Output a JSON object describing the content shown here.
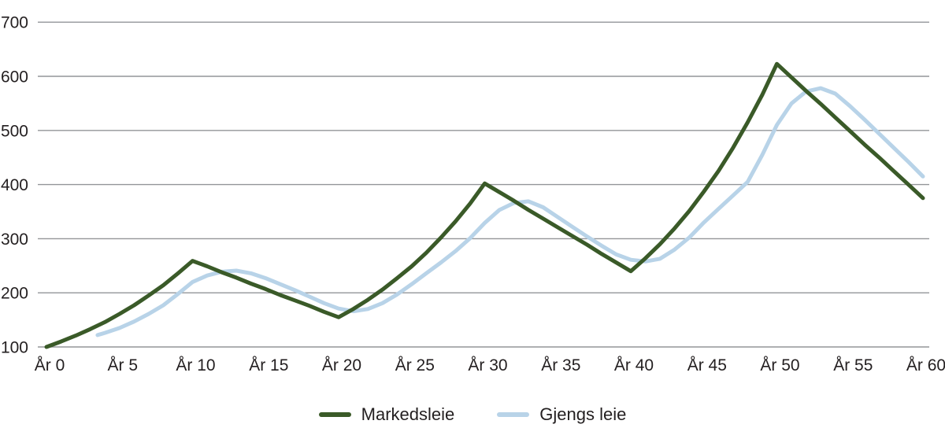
{
  "colors": {
    "background": "#ffffff",
    "grid": "#939598",
    "text": "#231f20",
    "markedsleie": "#3a5a28",
    "gjengs_leie": "#b8d3e8"
  },
  "chart_data": {
    "type": "line",
    "ylim": [
      100,
      700
    ],
    "yticks": [
      100,
      200,
      300,
      400,
      500,
      600,
      700
    ],
    "xticks": {
      "years": [
        0,
        5,
        10,
        15,
        20,
        25,
        30,
        35,
        40,
        45,
        50,
        55,
        60
      ],
      "labels": [
        "År 0",
        "År 5",
        "År 10",
        "År 15",
        "År 20",
        "År 25",
        "År 30",
        "År 35",
        "År 40",
        "År 45",
        "År 50",
        "År 55",
        "År 60"
      ]
    },
    "grid": "horizontal",
    "grid_color": "#939598",
    "legend_position": "bottom-center",
    "series": [
      {
        "name": "Markedsleie",
        "color": "#3a5a28",
        "x": [
          0,
          1,
          2,
          3,
          4,
          5,
          6,
          7,
          8,
          9,
          10,
          11,
          12,
          13,
          14,
          15,
          16,
          17,
          18,
          19,
          20,
          21,
          22,
          23,
          24,
          25,
          26,
          27,
          28,
          29,
          30,
          31,
          32,
          33,
          34,
          35,
          36,
          37,
          38,
          39,
          40,
          41,
          42,
          43,
          44,
          45,
          46,
          47,
          48,
          49,
          50,
          51,
          52,
          53,
          54,
          55,
          56,
          57,
          58,
          59,
          60
        ],
        "values": [
          100,
          110,
          121,
          133,
          146,
          161,
          177,
          195,
          214,
          236,
          259,
          249,
          238,
          228,
          217,
          207,
          196,
          186,
          176,
          165,
          155,
          170,
          187,
          206,
          227,
          249,
          274,
          302,
          332,
          365,
          402,
          386,
          370,
          353,
          337,
          321,
          305,
          289,
          272,
          256,
          240,
          264,
          290,
          319,
          351,
          387,
          425,
          468,
          515,
          566,
          623,
          598,
          573,
          549,
          524,
          499,
          474,
          450,
          425,
          400,
          375
        ]
      },
      {
        "name": "Gjengs leie",
        "color": "#b8d3e8",
        "x": [
          3.5,
          4,
          5,
          6,
          7,
          8,
          9,
          10,
          11,
          12,
          13,
          14,
          15,
          16,
          17,
          18,
          19,
          20,
          21,
          22,
          23,
          24,
          25,
          26,
          27,
          28,
          29,
          30,
          31,
          32,
          33,
          34,
          35,
          36,
          37,
          38,
          39,
          40,
          41,
          42,
          43,
          44,
          45,
          46,
          47,
          48,
          49,
          50,
          51,
          52,
          53,
          54,
          55,
          56,
          57,
          58,
          59,
          60
        ],
        "values": [
          122,
          126,
          135,
          147,
          161,
          177,
          198,
          220,
          232,
          239,
          241,
          236,
          227,
          216,
          205,
          193,
          181,
          171,
          166,
          170,
          181,
          197,
          216,
          236,
          256,
          277,
          301,
          329,
          353,
          366,
          369,
          358,
          340,
          322,
          304,
          287,
          271,
          261,
          258,
          263,
          280,
          302,
          330,
          355,
          380,
          405,
          455,
          510,
          550,
          572,
          578,
          568,
          545,
          520,
          494,
          468,
          442,
          415
        ]
      }
    ]
  },
  "legend": {
    "items": [
      "Markedsleie",
      "Gjengs leie"
    ]
  }
}
